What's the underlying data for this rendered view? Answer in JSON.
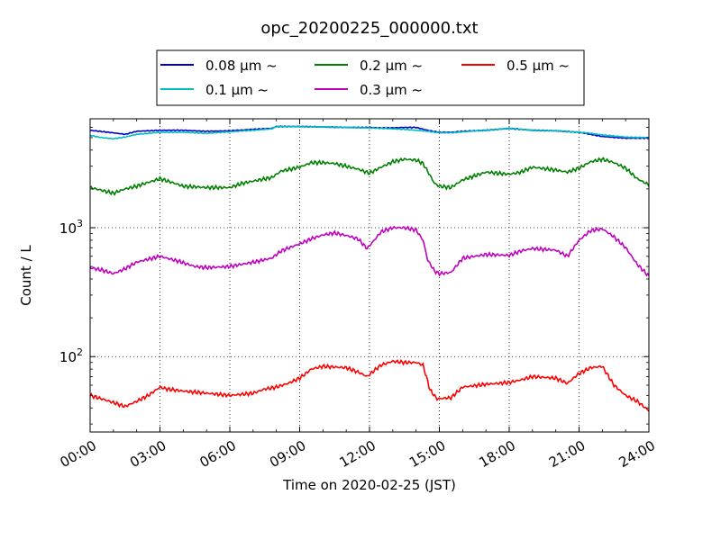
{
  "chart_data": {
    "type": "line",
    "title": "opc_20200225_000000.txt",
    "xlabel": "Time on 2020-02-25 (JST)",
    "ylabel": "Count / L",
    "x_ticks": [
      "00:00",
      "03:00",
      "06:00",
      "09:00",
      "12:00",
      "15:00",
      "18:00",
      "21:00",
      "24:00"
    ],
    "x_range_hours": [
      0,
      24
    ],
    "y_scale": "log",
    "ylim": [
      26,
      7000
    ],
    "y_ticks": [
      {
        "value": 100,
        "base": "10",
        "exp": "2"
      },
      {
        "value": 1000,
        "base": "10",
        "exp": "3"
      }
    ],
    "grid": "dotted at major ticks",
    "legend_position": "top-center",
    "legend_ncol": 3,
    "series": [
      {
        "name": "0.08 μm ~",
        "color": "#0000cc",
        "x": [
          0,
          1,
          1.5,
          2,
          3,
          4,
          5,
          6,
          7,
          7.8,
          8,
          9,
          10,
          11,
          12,
          12.5,
          13,
          13.5,
          14,
          14.5,
          15,
          15.5,
          16,
          17,
          18,
          19,
          20,
          21,
          21.5,
          22,
          23,
          24
        ],
        "y": [
          5700,
          5450,
          5300,
          5600,
          5700,
          5700,
          5600,
          5650,
          5800,
          5900,
          6100,
          6100,
          6050,
          6000,
          6000,
          5950,
          5950,
          6000,
          6000,
          5700,
          5500,
          5500,
          5600,
          5700,
          5900,
          5700,
          5650,
          5500,
          5300,
          5100,
          4950,
          4950
        ]
      },
      {
        "name": "0.1 μm ~",
        "color": "#00bfbf",
        "x": [
          0,
          0.5,
          1,
          1.5,
          2,
          2.5,
          3,
          4,
          5,
          6,
          7,
          7.8,
          8,
          9,
          10,
          11,
          12,
          12.5,
          13,
          13.5,
          14,
          14.5,
          15,
          15.5,
          16,
          17,
          18,
          19,
          20,
          21,
          21.5,
          22,
          23,
          24
        ],
        "y": [
          5200,
          5000,
          4900,
          5050,
          5300,
          5400,
          5500,
          5500,
          5400,
          5550,
          5700,
          5850,
          6100,
          6100,
          6050,
          6000,
          5950,
          5900,
          5850,
          5800,
          5700,
          5600,
          5450,
          5450,
          5550,
          5700,
          5900,
          5700,
          5650,
          5500,
          5400,
          5250,
          5050,
          5000
        ]
      },
      {
        "name": "0.2 μm ~",
        "color": "#008000",
        "x": [
          0,
          0.5,
          1,
          1.5,
          2,
          2.5,
          3,
          3.5,
          4,
          5,
          6,
          6.5,
          7,
          7.8,
          8.2,
          9,
          9.5,
          10,
          10.5,
          11,
          11.5,
          12,
          12.5,
          13,
          13.5,
          14,
          14.3,
          14.8,
          15,
          15.5,
          16,
          17,
          18,
          18.5,
          19,
          20,
          20.5,
          21,
          21.5,
          22,
          22.5,
          23,
          23.5,
          24
        ],
        "y": [
          2050,
          1950,
          1850,
          2000,
          2100,
          2250,
          2400,
          2250,
          2100,
          2050,
          2050,
          2200,
          2300,
          2450,
          2750,
          2950,
          3200,
          3200,
          3150,
          3000,
          2850,
          2650,
          2950,
          3250,
          3400,
          3350,
          3150,
          2200,
          2100,
          2050,
          2350,
          2700,
          2600,
          2700,
          2950,
          2800,
          2700,
          2900,
          3250,
          3400,
          3200,
          2900,
          2400,
          2150
        ]
      },
      {
        "name": "0.3 μm ~",
        "color": "#bf00bf",
        "x": [
          0,
          0.5,
          1,
          1.5,
          2,
          2.5,
          3,
          3.3,
          3.8,
          4.5,
          5,
          6,
          7,
          7.8,
          8.2,
          9,
          9.5,
          10,
          10.5,
          11,
          11.5,
          11.9,
          12.2,
          12.5,
          13,
          13.5,
          14,
          14.3,
          14.5,
          14.8,
          15,
          15.5,
          16,
          17,
          18,
          18.5,
          19,
          20,
          20.5,
          21,
          21.5,
          22,
          22.5,
          23,
          23.5,
          24
        ],
        "y": [
          490,
          470,
          440,
          480,
          540,
          570,
          600,
          580,
          550,
          500,
          490,
          500,
          540,
          580,
          660,
          750,
          820,
          880,
          910,
          870,
          820,
          690,
          800,
          930,
          1000,
          1000,
          960,
          800,
          560,
          460,
          440,
          450,
          580,
          620,
          610,
          660,
          690,
          670,
          600,
          800,
          950,
          980,
          850,
          700,
          520,
          420
        ]
      },
      {
        "name": "0.5 μm ~",
        "color": "#ff0000",
        "x": [
          0,
          0.5,
          1,
          1.5,
          2,
          2.5,
          3,
          3.3,
          4,
          5,
          6,
          7,
          7.5,
          8,
          8.5,
          9,
          9.5,
          10,
          11,
          11.5,
          11.9,
          12.2,
          12.5,
          13,
          13.5,
          14,
          14.3,
          14.6,
          14.9,
          15.5,
          16,
          17,
          18,
          18.5,
          19,
          20,
          20.5,
          21,
          21.5,
          22,
          22.5,
          23,
          23.5,
          24
        ],
        "y": [
          50,
          47,
          44,
          41,
          45,
          50,
          58,
          56,
          54,
          52,
          50,
          52,
          56,
          58,
          62,
          68,
          80,
          84,
          82,
          76,
          70,
          78,
          86,
          92,
          90,
          90,
          86,
          55,
          47,
          48,
          58,
          61,
          63,
          66,
          70,
          68,
          62,
          74,
          82,
          84,
          60,
          50,
          45,
          38
        ]
      }
    ]
  }
}
